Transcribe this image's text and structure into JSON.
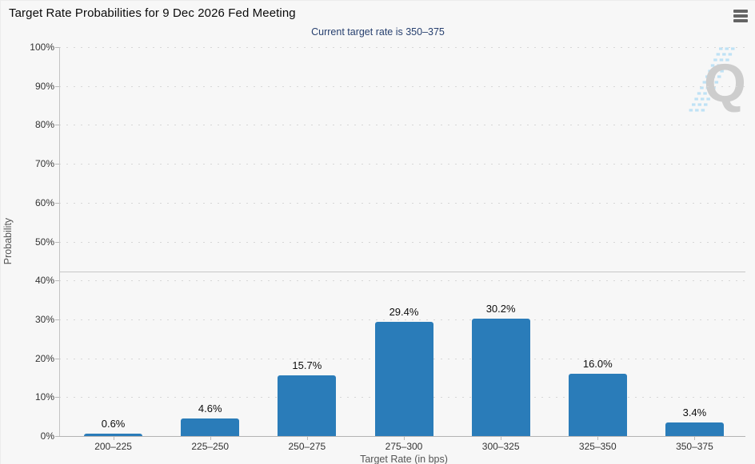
{
  "header": {
    "title": "Target Rate Probabilities for 9 Dec 2026 Fed Meeting",
    "menu_icon": "hamburger-icon"
  },
  "chart_data": {
    "type": "bar",
    "title": "Target Rate Probabilities for 9 Dec 2026 Fed Meeting",
    "subtitle": "Current target rate is 350–375",
    "categories": [
      "200–225",
      "225–250",
      "250–275",
      "275–300",
      "300–325",
      "325–350",
      "350–375"
    ],
    "values": [
      0.6,
      4.6,
      15.7,
      29.4,
      30.2,
      16.0,
      3.4
    ],
    "bar_labels": [
      "0.6%",
      "4.6%",
      "15.7%",
      "29.4%",
      "30.2%",
      "16.0%",
      "3.4%"
    ],
    "xlabel": "Target Rate (in bps)",
    "ylabel": "Probability",
    "ylim": [
      0,
      100
    ],
    "ytick_step": 10,
    "ytick_suffix": "%",
    "grid": "dotted horizontal gridlines every 10%",
    "legend": "none",
    "reference_line_pct": 42.3,
    "bar_color": "#2a7cb9",
    "watermark_letter": "Q"
  },
  "colors": {
    "background": "#f7f7f7",
    "bar": "#2a7cb9",
    "subtitle_text": "#27406f",
    "axis_text": "#333333",
    "axis_title_text": "#555555",
    "watermark_gray": "#c9c9c9",
    "watermark_blue": "#b9e0f5"
  }
}
